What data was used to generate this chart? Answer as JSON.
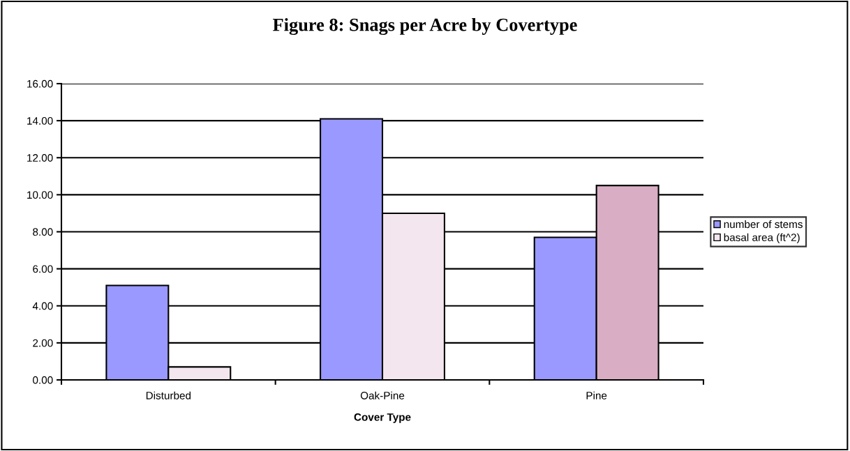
{
  "chart_data": {
    "type": "bar",
    "title": "Figure 8: Snags per Acre by Covertype",
    "xlabel": "Cover Type",
    "categories": [
      "Disturbed",
      "Oak-Pine",
      "Pine"
    ],
    "series": [
      {
        "name": "number of stems",
        "color": "#9999ff",
        "values": [
          5.1,
          14.1,
          7.7
        ]
      },
      {
        "name": "basal area (ft^2)",
        "color": "#f3e6ee",
        "colors": [
          "#f3e6ee",
          "#f3e6ee",
          "#d9aec4"
        ],
        "values": [
          0.7,
          9.0,
          10.5
        ]
      }
    ],
    "ylim": [
      0,
      16
    ],
    "yticks": [
      {
        "value": 0,
        "label": "0.00"
      },
      {
        "value": 2,
        "label": "2.00"
      },
      {
        "value": 4,
        "label": "4.00"
      },
      {
        "value": 6,
        "label": "6.00"
      },
      {
        "value": 8,
        "label": "8.00"
      },
      {
        "value": 10,
        "label": "10.00"
      },
      {
        "value": 12,
        "label": "12.00"
      },
      {
        "value": 14,
        "label": "14.00"
      },
      {
        "value": 16,
        "label": "16.00"
      }
    ],
    "grid": "y",
    "legend": "right"
  }
}
